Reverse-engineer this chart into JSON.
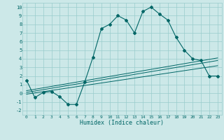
{
  "xlabel": "Humidex (Indice chaleur)",
  "ylabel": "",
  "bg_color": "#cce8e8",
  "grid_color": "#99cccc",
  "line_color": "#006666",
  "xlim": [
    -0.5,
    23.5
  ],
  "ylim": [
    -2.5,
    10.5
  ],
  "xticks": [
    0,
    1,
    2,
    3,
    4,
    5,
    6,
    7,
    8,
    9,
    10,
    11,
    12,
    13,
    14,
    15,
    16,
    17,
    18,
    19,
    20,
    21,
    22,
    23
  ],
  "yticks": [
    -2,
    -1,
    0,
    1,
    2,
    3,
    4,
    5,
    6,
    7,
    8,
    9,
    10
  ],
  "main_x": [
    0,
    1,
    2,
    3,
    4,
    5,
    6,
    7,
    8,
    9,
    10,
    11,
    12,
    13,
    14,
    15,
    16,
    17,
    18,
    19,
    20,
    21,
    22,
    23
  ],
  "main_y": [
    1.5,
    -0.5,
    0.1,
    0.2,
    -0.4,
    -1.3,
    -1.3,
    1.3,
    4.2,
    7.5,
    8.0,
    9.0,
    8.5,
    7.0,
    9.5,
    10.0,
    9.2,
    8.5,
    6.5,
    5.0,
    4.0,
    3.8,
    2.0,
    2.0
  ],
  "line2_x": [
    0,
    23
  ],
  "line2_y": [
    0.1,
    3.8
  ],
  "line3_x": [
    0,
    23
  ],
  "line3_y": [
    0.3,
    4.1
  ],
  "line4_x": [
    0,
    23
  ],
  "line4_y": [
    -0.1,
    3.2
  ]
}
